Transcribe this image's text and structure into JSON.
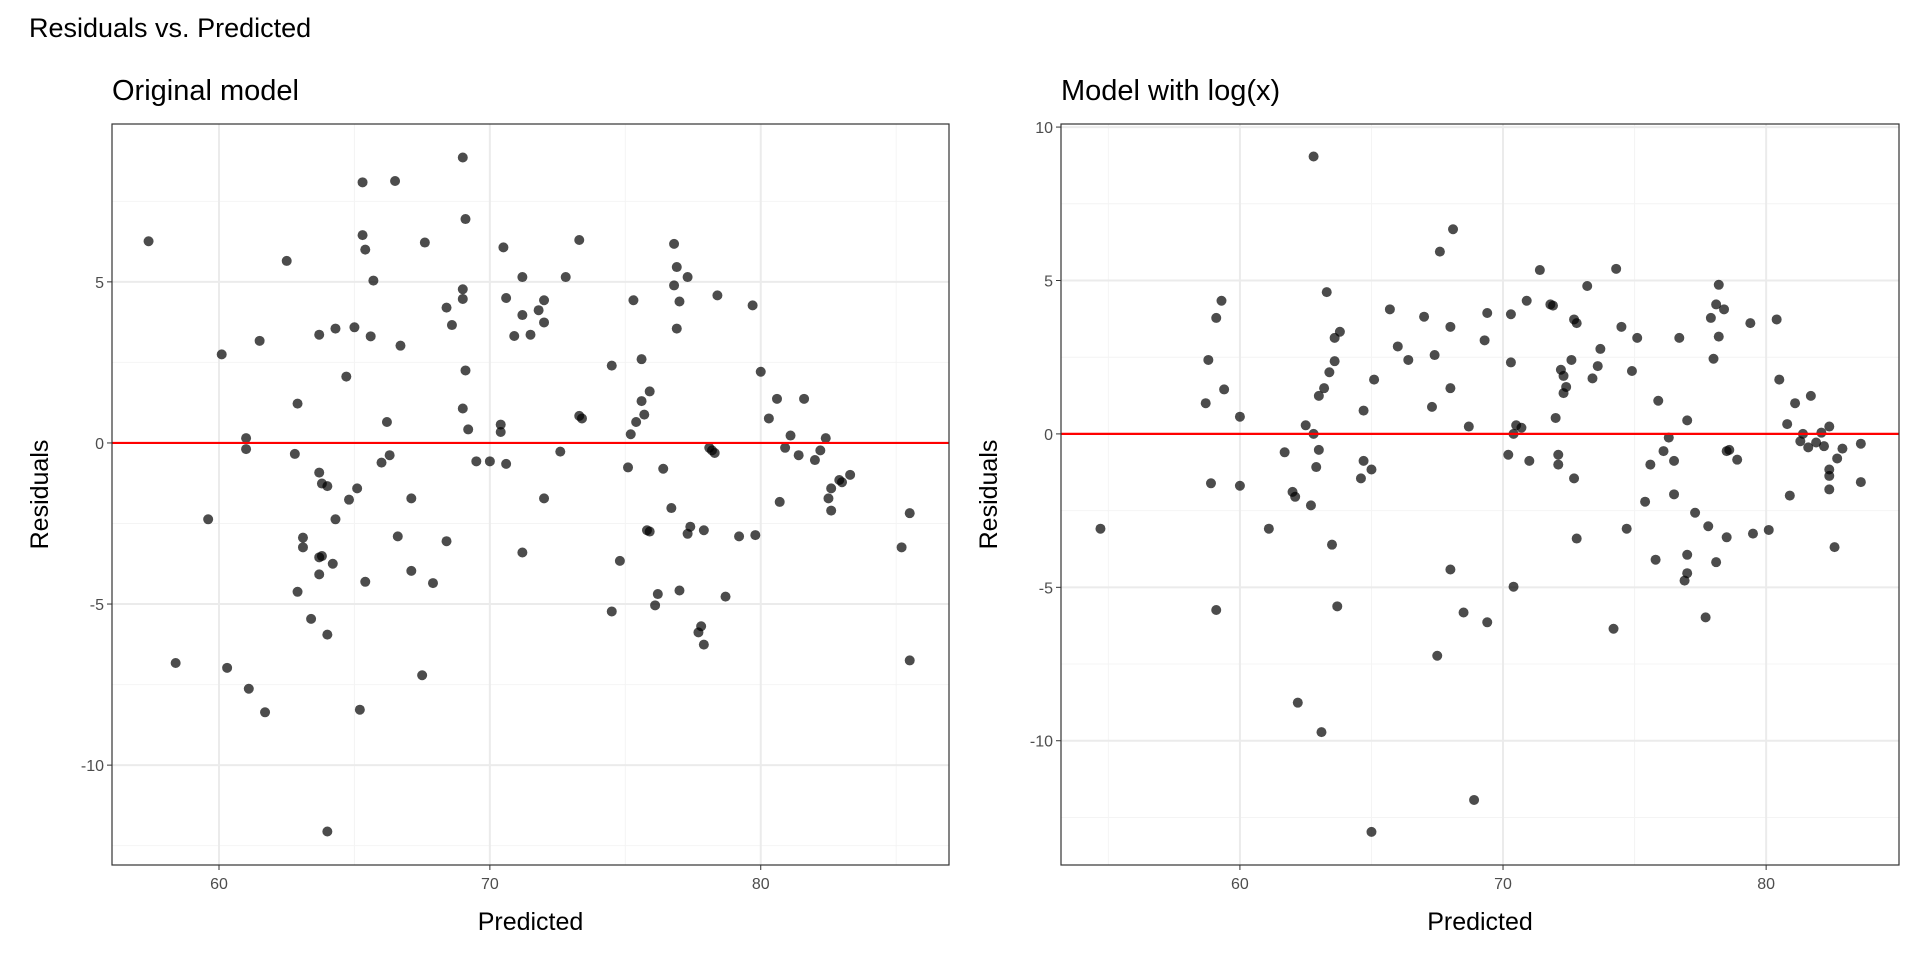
{
  "title": "Residuals vs. Predicted",
  "colors": {
    "point": "#000000",
    "hline": "#FF0000",
    "grid_major": "#EBEBEB",
    "grid_minor": "#F4F4F4",
    "border": "#333333"
  },
  "chart_data": [
    {
      "type": "scatter",
      "title": "Original model",
      "xlabel": "Predicted",
      "ylabel": "Residuals",
      "xlim": [
        56.05,
        86.95
      ],
      "ylim": [
        -13.1,
        9.9
      ],
      "xticks": [
        60,
        70,
        80
      ],
      "xtick_labels": [
        "60",
        "70",
        "80"
      ],
      "xminor": [
        55,
        65,
        75,
        85
      ],
      "yticks": [
        -10,
        -5,
        0,
        5
      ],
      "ytick_labels": [
        "-10",
        "-5",
        "0",
        "5"
      ],
      "yminor": [
        -12.5,
        -7.5,
        -2.5,
        2.5,
        7.5
      ],
      "hline": 0,
      "grid": true,
      "points": [
        [
          57.4,
          6.26
        ],
        [
          58.4,
          -6.83
        ],
        [
          59.6,
          -2.37
        ],
        [
          60.1,
          2.75
        ],
        [
          60.3,
          -6.98
        ],
        [
          61.0,
          0.15
        ],
        [
          61.0,
          -0.19
        ],
        [
          61.1,
          -7.63
        ],
        [
          61.5,
          3.17
        ],
        [
          61.7,
          -8.36
        ],
        [
          62.5,
          5.65
        ],
        [
          62.8,
          -0.34
        ],
        [
          62.9,
          1.22
        ],
        [
          62.9,
          -4.62
        ],
        [
          63.1,
          -2.94
        ],
        [
          63.1,
          -3.24
        ],
        [
          63.4,
          -5.46
        ],
        [
          63.7,
          3.36
        ],
        [
          63.7,
          -0.92
        ],
        [
          63.8,
          -1.26
        ],
        [
          63.7,
          -3.55
        ],
        [
          63.8,
          -3.51
        ],
        [
          63.7,
          -4.08
        ],
        [
          64.0,
          -1.34
        ],
        [
          64.0,
          -5.95
        ],
        [
          64.0,
          -12.06
        ],
        [
          64.3,
          3.55
        ],
        [
          64.3,
          -2.37
        ],
        [
          64.2,
          -3.75
        ],
        [
          64.7,
          2.06
        ],
        [
          64.8,
          -1.76
        ],
        [
          65.0,
          3.59
        ],
        [
          65.1,
          -1.41
        ],
        [
          65.2,
          -8.28
        ],
        [
          65.3,
          8.09
        ],
        [
          65.3,
          6.45
        ],
        [
          65.4,
          -4.31
        ],
        [
          65.4,
          6.0
        ],
        [
          65.7,
          5.04
        ],
        [
          65.6,
          3.31
        ],
        [
          66.0,
          -0.61
        ],
        [
          66.2,
          0.65
        ],
        [
          66.3,
          -0.38
        ],
        [
          66.5,
          8.13
        ],
        [
          66.6,
          -2.9
        ],
        [
          66.7,
          3.02
        ],
        [
          67.1,
          -1.72
        ],
        [
          67.1,
          -3.97
        ],
        [
          67.5,
          -7.21
        ],
        [
          67.6,
          6.22
        ],
        [
          67.9,
          -4.35
        ],
        [
          68.4,
          4.2
        ],
        [
          68.4,
          -3.05
        ],
        [
          68.6,
          3.66
        ],
        [
          69.0,
          4.47
        ],
        [
          69.0,
          4.77
        ],
        [
          69.0,
          8.86
        ],
        [
          69.1,
          6.95
        ],
        [
          69.1,
          2.25
        ],
        [
          69.0,
          1.07
        ],
        [
          69.2,
          0.42
        ],
        [
          69.5,
          -0.57
        ],
        [
          70.0,
          -0.57
        ],
        [
          70.4,
          0.57
        ],
        [
          70.4,
          0.34
        ],
        [
          70.5,
          6.07
        ],
        [
          70.6,
          -0.65
        ],
        [
          70.6,
          4.5
        ],
        [
          70.9,
          3.32
        ],
        [
          71.2,
          3.97
        ],
        [
          71.2,
          5.15
        ],
        [
          71.2,
          -3.4
        ],
        [
          71.5,
          3.36
        ],
        [
          71.8,
          4.12
        ],
        [
          72.0,
          4.43
        ],
        [
          72.0,
          3.74
        ],
        [
          72.0,
          -1.72
        ],
        [
          72.6,
          -0.27
        ],
        [
          72.8,
          5.15
        ],
        [
          73.3,
          6.3
        ],
        [
          73.3,
          0.84
        ],
        [
          73.4,
          0.76
        ],
        [
          74.5,
          2.4
        ],
        [
          74.5,
          -5.23
        ],
        [
          74.8,
          -3.66
        ],
        [
          75.1,
          -0.76
        ],
        [
          75.2,
          0.27
        ],
        [
          75.3,
          4.43
        ],
        [
          75.4,
          0.65
        ],
        [
          75.6,
          2.6
        ],
        [
          75.6,
          1.3
        ],
        [
          75.7,
          0.88
        ],
        [
          75.8,
          -2.71
        ],
        [
          75.9,
          1.6
        ],
        [
          75.9,
          -2.75
        ],
        [
          76.1,
          -5.04
        ],
        [
          76.2,
          -4.69
        ],
        [
          76.4,
          -0.8
        ],
        [
          76.7,
          -2.02
        ],
        [
          76.8,
          4.89
        ],
        [
          76.9,
          5.46
        ],
        [
          76.8,
          6.18
        ],
        [
          76.9,
          3.55
        ],
        [
          77.0,
          4.39
        ],
        [
          77.0,
          -4.58
        ],
        [
          77.3,
          5.15
        ],
        [
          77.3,
          -2.82
        ],
        [
          77.4,
          -2.6
        ],
        [
          77.7,
          -5.88
        ],
        [
          77.8,
          -5.69
        ],
        [
          77.9,
          -2.71
        ],
        [
          77.9,
          -6.26
        ],
        [
          78.1,
          -0.15
        ],
        [
          78.2,
          -0.23
        ],
        [
          78.3,
          -0.31
        ],
        [
          78.4,
          4.58
        ],
        [
          78.7,
          -4.77
        ],
        [
          79.2,
          -2.9
        ],
        [
          79.7,
          4.27
        ],
        [
          79.8,
          -2.86
        ],
        [
          80.0,
          2.21
        ],
        [
          80.3,
          0.76
        ],
        [
          80.6,
          1.37
        ],
        [
          80.7,
          -1.83
        ],
        [
          80.9,
          -0.15
        ],
        [
          81.1,
          0.23
        ],
        [
          81.4,
          -0.38
        ],
        [
          81.6,
          1.37
        ],
        [
          82.0,
          -0.53
        ],
        [
          82.2,
          -0.23
        ],
        [
          82.4,
          0.15
        ],
        [
          82.5,
          -1.72
        ],
        [
          82.6,
          -1.41
        ],
        [
          82.6,
          -2.1
        ],
        [
          82.9,
          -1.15
        ],
        [
          83.0,
          -1.22
        ],
        [
          83.3,
          -0.99
        ],
        [
          85.2,
          -3.24
        ],
        [
          85.5,
          -2.18
        ],
        [
          85.5,
          -6.75
        ]
      ]
    },
    {
      "type": "scatter",
      "title": "Model with log(x)",
      "xlabel": "Predicted",
      "ylabel": "Residuals",
      "xlim": [
        53.2,
        85.05
      ],
      "ylim": [
        -14.05,
        10.1
      ],
      "xticks": [
        60,
        70,
        80
      ],
      "xtick_labels": [
        "60",
        "70",
        "80"
      ],
      "xminor": [
        55,
        65,
        75
      ],
      "yticks": [
        -10,
        -5,
        0,
        5,
        10
      ],
      "ytick_labels": [
        "-10",
        "-5",
        "0",
        "5",
        "10"
      ],
      "yminor": [
        -12.5,
        -7.5,
        -2.5,
        2.5,
        7.5
      ],
      "hline": 0,
      "grid": true,
      "points": [
        [
          54.7,
          -3.09
        ],
        [
          58.7,
          1.0
        ],
        [
          58.8,
          2.41
        ],
        [
          58.9,
          -1.61
        ],
        [
          59.1,
          3.78
        ],
        [
          59.1,
          -5.74
        ],
        [
          59.3,
          4.34
        ],
        [
          59.4,
          1.45
        ],
        [
          60.0,
          0.56
        ],
        [
          60.0,
          -1.69
        ],
        [
          61.1,
          -3.09
        ],
        [
          61.7,
          -0.6
        ],
        [
          62.0,
          -1.89
        ],
        [
          62.1,
          -2.05
        ],
        [
          62.2,
          -8.76
        ],
        [
          62.5,
          0.28
        ],
        [
          62.7,
          -2.33
        ],
        [
          62.8,
          9.04
        ],
        [
          62.8,
          0
        ],
        [
          62.9,
          -1.08
        ],
        [
          63.0,
          1.24
        ],
        [
          63.0,
          -0.52
        ],
        [
          63.1,
          -9.72
        ],
        [
          63.2,
          1.49
        ],
        [
          63.3,
          4.62
        ],
        [
          63.4,
          2.01
        ],
        [
          63.5,
          -3.61
        ],
        [
          63.6,
          2.37
        ],
        [
          63.6,
          3.13
        ],
        [
          63.7,
          -5.62
        ],
        [
          63.8,
          3.33
        ],
        [
          64.6,
          -1.45
        ],
        [
          64.7,
          0.76
        ],
        [
          64.7,
          -0.88
        ],
        [
          65.0,
          -1.16
        ],
        [
          65.0,
          -12.97
        ],
        [
          65.1,
          1.77
        ],
        [
          65.7,
          4.06
        ],
        [
          66.0,
          2.85
        ],
        [
          66.4,
          2.41
        ],
        [
          67.0,
          3.82
        ],
        [
          67.3,
          0.88
        ],
        [
          67.4,
          2.57
        ],
        [
          67.5,
          -7.23
        ],
        [
          67.6,
          5.94
        ],
        [
          68.0,
          1.49
        ],
        [
          68.0,
          3.49
        ],
        [
          68.0,
          -4.42
        ],
        [
          68.1,
          6.67
        ],
        [
          68.5,
          -5.82
        ],
        [
          68.7,
          0.24
        ],
        [
          68.9,
          -11.93
        ],
        [
          69.3,
          3.05
        ],
        [
          69.4,
          3.94
        ],
        [
          69.4,
          -6.14
        ],
        [
          70.2,
          -0.68
        ],
        [
          70.3,
          2.33
        ],
        [
          70.3,
          3.9
        ],
        [
          70.4,
          -4.98
        ],
        [
          70.4,
          0
        ],
        [
          70.5,
          0.28
        ],
        [
          70.7,
          0.2
        ],
        [
          70.9,
          4.34
        ],
        [
          71.0,
          -0.88
        ],
        [
          71.4,
          5.34
        ],
        [
          71.8,
          4.22
        ],
        [
          71.9,
          4.18
        ],
        [
          72.0,
          0.52
        ],
        [
          72.1,
          -0.68
        ],
        [
          72.1,
          -1.0
        ],
        [
          72.2,
          2.09
        ],
        [
          72.3,
          1.33
        ],
        [
          72.3,
          1.89
        ],
        [
          72.4,
          1.53
        ],
        [
          72.6,
          2.41
        ],
        [
          72.7,
          -1.45
        ],
        [
          72.7,
          3.73
        ],
        [
          72.8,
          -3.41
        ],
        [
          72.8,
          3.61
        ],
        [
          73.2,
          4.82
        ],
        [
          73.4,
          1.81
        ],
        [
          73.6,
          2.21
        ],
        [
          73.7,
          2.77
        ],
        [
          74.2,
          -6.35
        ],
        [
          74.3,
          5.38
        ],
        [
          74.5,
          3.49
        ],
        [
          74.7,
          -3.09
        ],
        [
          74.9,
          2.05
        ],
        [
          75.1,
          3.13
        ],
        [
          75.4,
          -2.21
        ],
        [
          75.6,
          -1.0
        ],
        [
          75.8,
          -4.1
        ],
        [
          75.9,
          1.08
        ],
        [
          76.1,
          -0.56
        ],
        [
          76.3,
          -0.12
        ],
        [
          76.5,
          -0.88
        ],
        [
          76.5,
          -1.97
        ],
        [
          76.7,
          3.13
        ],
        [
          76.9,
          -4.78
        ],
        [
          77.0,
          -4.54
        ],
        [
          77.0,
          -3.94
        ],
        [
          77.0,
          0.44
        ],
        [
          77.3,
          -2.57
        ],
        [
          77.7,
          -5.98
        ],
        [
          77.8,
          -3.01
        ],
        [
          77.9,
          3.78
        ],
        [
          78.0,
          2.45
        ],
        [
          78.1,
          -4.18
        ],
        [
          78.1,
          4.22
        ],
        [
          78.2,
          3.17
        ],
        [
          78.2,
          4.86
        ],
        [
          78.4,
          4.06
        ],
        [
          78.5,
          -0.56
        ],
        [
          78.6,
          -0.52
        ],
        [
          78.5,
          -3.37
        ],
        [
          78.9,
          -0.84
        ],
        [
          79.4,
          3.61
        ],
        [
          79.5,
          -3.25
        ],
        [
          80.1,
          -3.13
        ],
        [
          80.4,
          3.73
        ],
        [
          80.5,
          1.77
        ],
        [
          80.8,
          0.32
        ],
        [
          80.9,
          -2.01
        ],
        [
          81.1,
          1.0
        ],
        [
          81.3,
          -0.24
        ],
        [
          81.4,
          0
        ],
        [
          81.6,
          -0.44
        ],
        [
          81.7,
          1.24
        ],
        [
          81.9,
          -0.28
        ],
        [
          82.1,
          0.04
        ],
        [
          82.2,
          -0.4
        ],
        [
          82.4,
          0.24
        ],
        [
          82.4,
          -1.37
        ],
        [
          82.4,
          -1.81
        ],
        [
          82.4,
          -1.16
        ],
        [
          82.6,
          -3.69
        ],
        [
          82.7,
          -0.8
        ],
        [
          82.9,
          -0.48
        ],
        [
          83.6,
          -0.32
        ],
        [
          83.6,
          -1.57
        ]
      ]
    }
  ]
}
